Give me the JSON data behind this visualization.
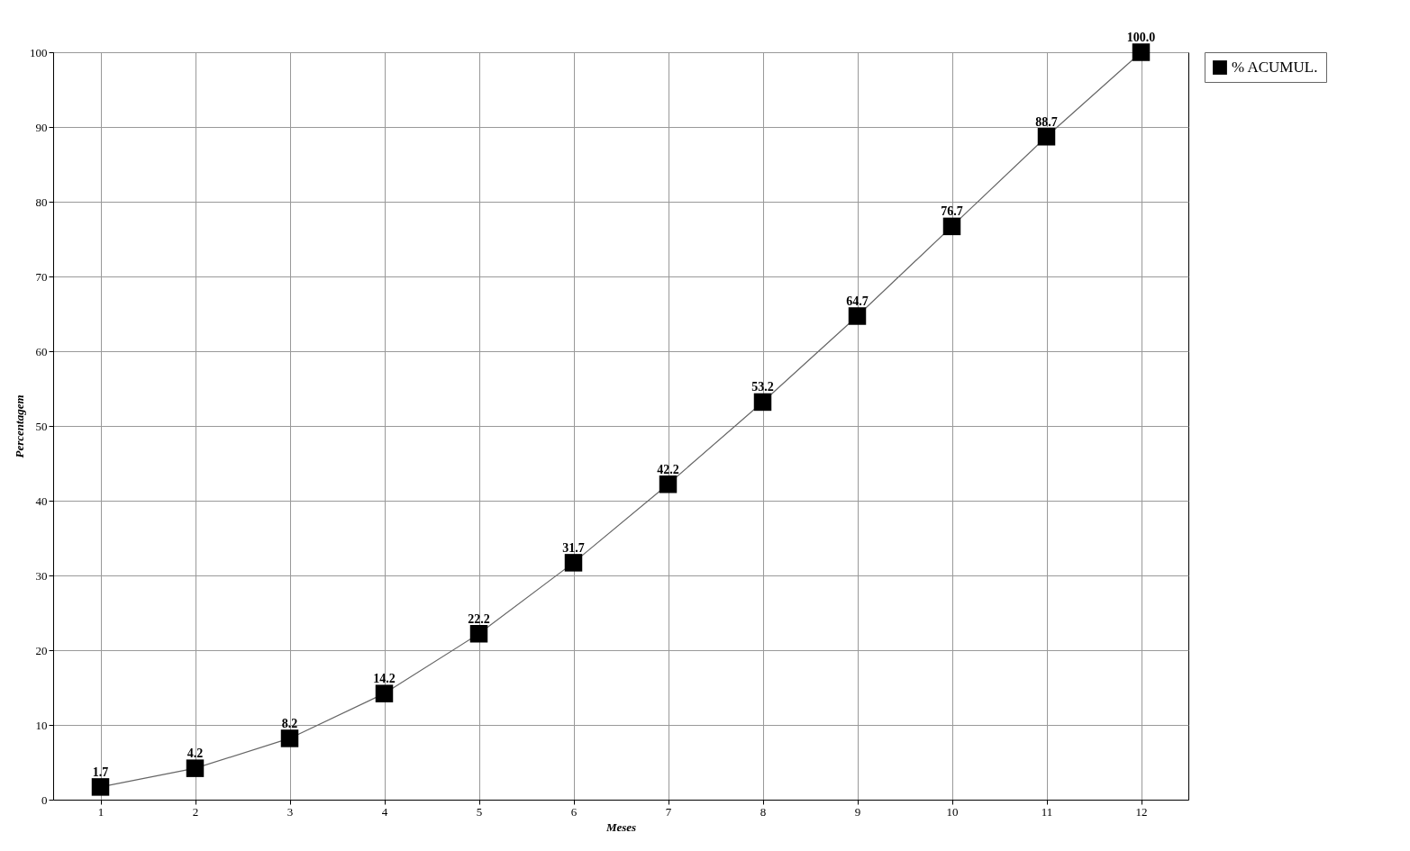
{
  "chart_data": {
    "type": "line",
    "xlabel": "Meses",
    "ylabel": "Percentagem",
    "categories": [
      "1",
      "2",
      "3",
      "4",
      "5",
      "6",
      "7",
      "8",
      "9",
      "10",
      "11",
      "12"
    ],
    "series": [
      {
        "name": "% ACUMUL.",
        "color": "#000000",
        "values": [
          1.7,
          4.2,
          8.2,
          14.2,
          22.2,
          31.7,
          42.2,
          53.2,
          64.7,
          76.7,
          88.7,
          100.0
        ],
        "value_labels": [
          "1.7",
          "4.2",
          "8.2",
          "14.2",
          "22.2",
          "31.7",
          "42.2",
          "53.2",
          "64.7",
          "76.7",
          "88.7",
          "100.0"
        ]
      }
    ],
    "ylim": [
      0,
      100
    ],
    "yticks": [
      0,
      10,
      20,
      30,
      40,
      50,
      60,
      70,
      80,
      90,
      100
    ],
    "grid": true,
    "legend": "top right",
    "marker": "square",
    "line_style": "solid"
  }
}
